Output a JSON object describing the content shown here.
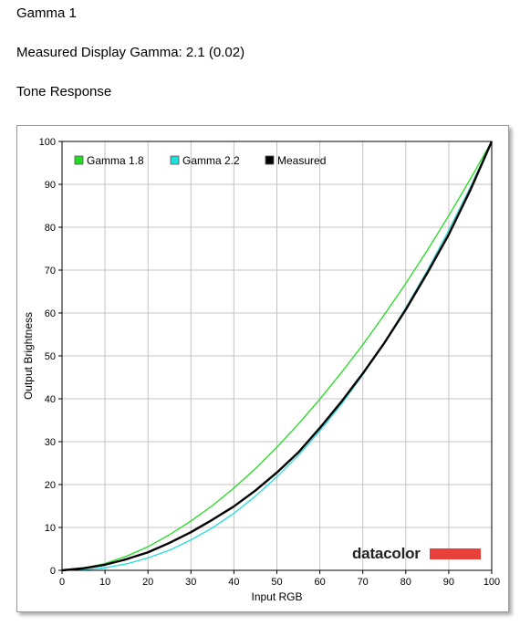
{
  "header": {
    "title": "Gamma 1",
    "measured": "Measured Display Gamma: 2.1 (0.02)",
    "section": "Tone Response"
  },
  "logo": {
    "text": "datacolor",
    "bar_color": "#e8413c"
  },
  "chart_data": {
    "type": "line",
    "xlabel": "Input RGB",
    "ylabel": "Output Brightness",
    "xlim": [
      0,
      100
    ],
    "ylim": [
      0,
      100
    ],
    "xticks": [
      0,
      10,
      20,
      30,
      40,
      50,
      60,
      70,
      80,
      90,
      100
    ],
    "yticks": [
      0,
      10,
      20,
      30,
      40,
      50,
      60,
      70,
      80,
      90,
      100
    ],
    "grid": true,
    "legend_position": "top-left",
    "series": [
      {
        "name": "Gamma 1.8",
        "color": "#22dd22",
        "x": [
          0,
          5,
          10,
          15,
          20,
          25,
          30,
          35,
          40,
          45,
          50,
          55,
          60,
          65,
          70,
          75,
          80,
          85,
          90,
          95,
          100
        ],
        "y": [
          0,
          0.5,
          1.6,
          3.3,
          5.5,
          8.3,
          11.5,
          15.1,
          19.2,
          23.7,
          28.7,
          34.1,
          39.9,
          46.1,
          52.6,
          59.6,
          66.9,
          74.6,
          82.7,
          91.2,
          100
        ]
      },
      {
        "name": "Gamma 2.2",
        "color": "#22dddd",
        "x": [
          0,
          5,
          10,
          15,
          20,
          25,
          30,
          35,
          40,
          45,
          50,
          55,
          60,
          65,
          70,
          75,
          80,
          85,
          90,
          95,
          100
        ],
        "y": [
          0,
          0.1,
          0.6,
          1.5,
          2.9,
          4.7,
          7.1,
          9.9,
          13.3,
          17.3,
          21.8,
          26.8,
          32.5,
          38.7,
          45.6,
          53.1,
          61.2,
          69.9,
          79.3,
          89.3,
          100
        ]
      },
      {
        "name": "Measured",
        "color": "#000000",
        "x": [
          0,
          5,
          10,
          15,
          20,
          25,
          30,
          35,
          40,
          45,
          50,
          55,
          60,
          65,
          70,
          75,
          80,
          85,
          90,
          95,
          100
        ],
        "y": [
          0,
          0.5,
          1.3,
          2.6,
          4.2,
          6.4,
          8.9,
          11.8,
          14.9,
          18.6,
          22.8,
          27.5,
          33.2,
          39.3,
          45.9,
          53.0,
          60.8,
          69.3,
          78.3,
          88.6,
          100
        ]
      }
    ]
  }
}
